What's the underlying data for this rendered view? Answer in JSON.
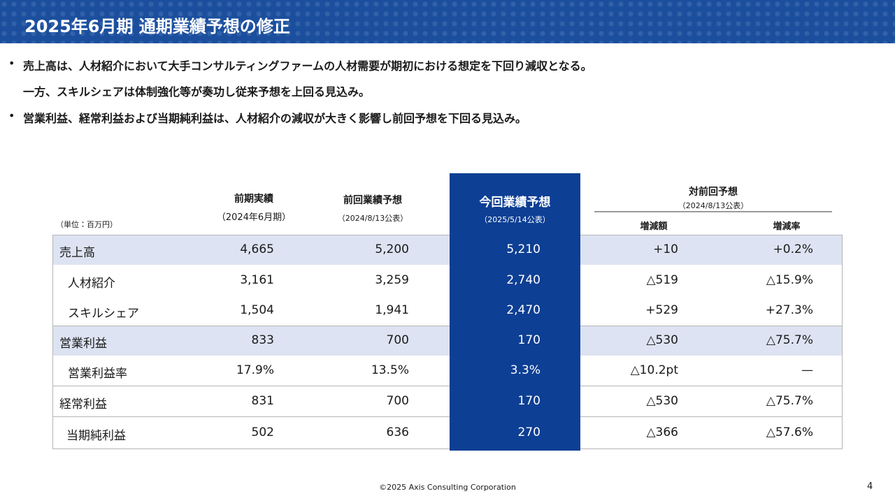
{
  "header": {
    "title": "2025年6月期 通期業績予想の修正"
  },
  "bullets": [
    "売上高は、人材紹介において大手コンサルティングファームの人材需要が期初における想定を下回り減収となる。",
    "一方、スキルシェアは体制強化等が奏功し従来予想を上回る見込み。",
    "営業利益、経常利益および当期純利益は、人材紹介の減収が大きく影響し前回予想を下回る見込み。"
  ],
  "table": {
    "unit": "（単位：百万円）",
    "columns": [
      {
        "title": "前期実績",
        "note": "（2024年6月期）"
      },
      {
        "title": "前回業績予想",
        "note": "（2024/8/13公表）"
      },
      {
        "title": "今回業績予想",
        "note": "（2025/5/14公表）"
      }
    ],
    "comparison": {
      "title": "対前回予想",
      "note": "（2024/8/13公表）",
      "subcolumns": [
        "増減額",
        "増減率"
      ]
    },
    "rows": [
      [
        "売上高",
        "4,665",
        "5,200",
        "5,210",
        "+10",
        "+0.2%"
      ],
      [
        "人材紹介",
        "3,161",
        "3,259",
        "2,740",
        "△519",
        "△15.9%"
      ],
      [
        "スキルシェア",
        "1,504",
        "1,941",
        "2,470",
        "+529",
        "+27.3%"
      ],
      [
        "営業利益",
        "833",
        "700",
        "170",
        "△530",
        "△75.7%"
      ],
      [
        "営業利益率",
        "17.9%",
        "13.5%",
        "3.3%",
        "△10.2pt",
        "—"
      ],
      [
        "経常利益",
        "831",
        "700",
        "170",
        "△530",
        "△75.7%"
      ],
      [
        "当期純利益",
        "502",
        "636",
        "270",
        "△366",
        "△57.6%"
      ]
    ]
  },
  "footer": {
    "copyright": "©2025 Axis Consulting Corporation",
    "page": "4"
  }
}
